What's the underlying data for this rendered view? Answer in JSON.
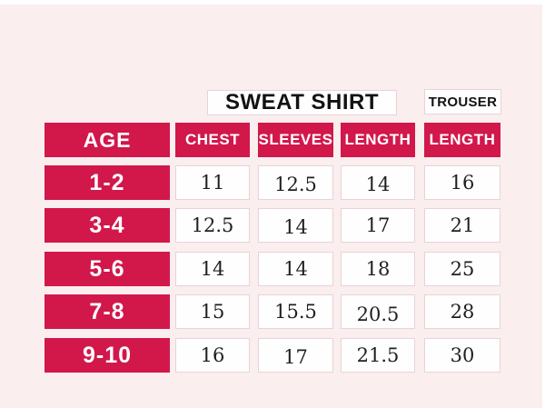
{
  "colors": {
    "accent": "#D2174B",
    "background": "#FAEEEF",
    "cell_border": "#E8D3D7",
    "title_text": "#121212",
    "value_text": "#1F1F1F"
  },
  "chart_data": {
    "type": "table",
    "row_header": "AGE",
    "column_groups": [
      {
        "label": "SWEAT SHIRT",
        "columns": [
          "CHEST",
          "SLEEVES",
          "LENGTH"
        ]
      },
      {
        "label": "TROUSER",
        "columns": [
          "LENGTH"
        ]
      }
    ],
    "age_ranges": [
      "1-2",
      "3-4",
      "5-6",
      "7-8",
      "9-10"
    ],
    "series": [
      {
        "name": "SWEAT SHIRT CHEST",
        "values": [
          11,
          12.5,
          14,
          15,
          16
        ]
      },
      {
        "name": "SWEAT SHIRT SLEEVES",
        "values": [
          12.5,
          14,
          14,
          15.5,
          17
        ]
      },
      {
        "name": "SWEAT SHIRT LENGTH",
        "values": [
          14,
          17,
          18,
          20.5,
          21.5
        ]
      },
      {
        "name": "TROUSER LENGTH",
        "values": [
          16,
          21,
          25,
          28,
          30
        ]
      }
    ]
  }
}
